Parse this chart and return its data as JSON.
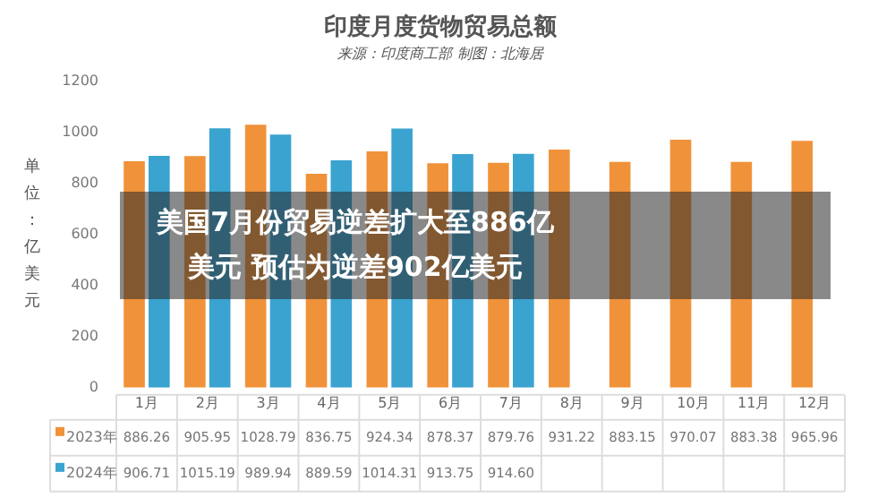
{
  "chart_data": {
    "type": "bar",
    "title": "印度月度货物贸易总额",
    "subtitle": "来源：印度商工部 制图：北海居",
    "ylabel": "单位：亿美元",
    "categories": [
      "1月",
      "2月",
      "3月",
      "4月",
      "5月",
      "6月",
      "7月",
      "8月",
      "9月",
      "10月",
      "11月",
      "12月"
    ],
    "series": [
      {
        "name": "2023年",
        "color": "#f0923a",
        "values": [
          886.26,
          905.95,
          1028.79,
          836.75,
          924.34,
          878.37,
          879.76,
          931.22,
          883.15,
          970.07,
          883.38,
          965.96
        ],
        "value_labels": [
          "886.26",
          "905.95",
          "1028.79",
          "836.75",
          "924.34",
          "878.37",
          "879.76",
          "931.22",
          "883.15",
          "970.07",
          "883.38",
          "965.96"
        ]
      },
      {
        "name": "2024年",
        "color": "#3aa3d0",
        "values": [
          906.71,
          1015.19,
          989.94,
          889.59,
          1014.31,
          913.75,
          914.6,
          null,
          null,
          null,
          null,
          null
        ],
        "value_labels": [
          "906.71",
          "1015.19",
          "989.94",
          "889.59",
          "1014.31",
          "913.75",
          "914.60",
          null,
          null,
          null,
          null,
          null
        ]
      }
    ],
    "ylim": [
      0,
      1200
    ],
    "yticks": [
      0,
      200,
      400,
      600,
      800,
      1000,
      1200
    ],
    "grid": false,
    "legend": "bottom",
    "annotations": [
      "美国7月份贸易逆差扩大至886亿美元 预估为逆差902亿美元"
    ]
  }
}
